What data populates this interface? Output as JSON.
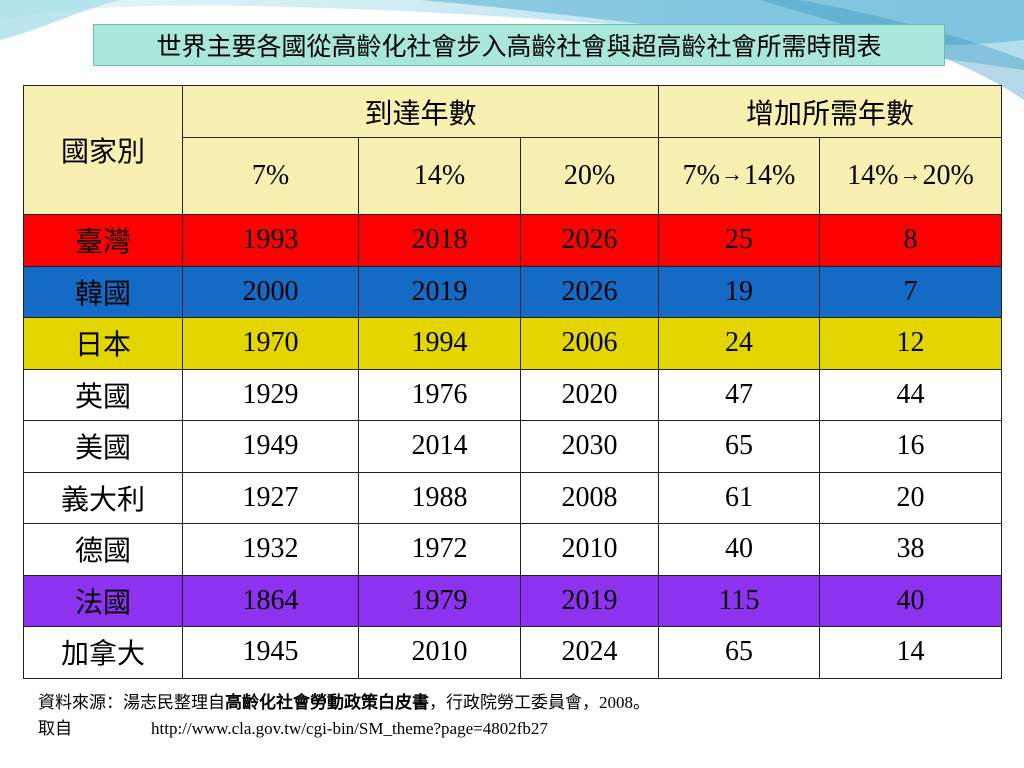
{
  "title": "世界主要各國從高齡化社會步入高齡社會與超高齡社會所需時間表",
  "header": {
    "country": "國家別",
    "years_to_reach": "到達年數",
    "years_needed": "增加所需年數",
    "cols": [
      "7%",
      "14%",
      "20%"
    ],
    "from1": "7%",
    "to1": "14%",
    "from2": "14%",
    "to2": "20%",
    "arrow": "→"
  },
  "rows": [
    {
      "country": "臺灣",
      "y7": "1993",
      "y14": "2018",
      "y20": "2026",
      "d1": "25",
      "d2": "8"
    },
    {
      "country": "韓國",
      "y7": "2000",
      "y14": "2019",
      "y20": "2026",
      "d1": "19",
      "d2": "7"
    },
    {
      "country": "日本",
      "y7": "1970",
      "y14": "1994",
      "y20": "2006",
      "d1": "24",
      "d2": "12"
    },
    {
      "country": "英國",
      "y7": "1929",
      "y14": "1976",
      "y20": "2020",
      "d1": "47",
      "d2": "44"
    },
    {
      "country": "美國",
      "y7": "1949",
      "y14": "2014",
      "y20": "2030",
      "d1": "65",
      "d2": "16"
    },
    {
      "country": "義大利",
      "y7": "1927",
      "y14": "1988",
      "y20": "2008",
      "d1": "61",
      "d2": "20"
    },
    {
      "country": "德國",
      "y7": "1932",
      "y14": "1972",
      "y20": "2010",
      "d1": "40",
      "d2": "38"
    },
    {
      "country": "法國",
      "y7": "1864",
      "y14": "1979",
      "y20": "2019",
      "d1": "115",
      "d2": "40"
    },
    {
      "country": "加拿大",
      "y7": "1945",
      "y14": "2010",
      "y20": "2024",
      "d1": "65",
      "d2": "14"
    }
  ],
  "row_colors": [
    "#ff0000",
    "#136bc6",
    "#e3d600",
    "#ffffff",
    "#ffffff",
    "#ffffff",
    "#ffffff",
    "#8d33ef",
    "#ffffff"
  ],
  "footer": {
    "source_prefix": "資料來源：湯志民整理自",
    "source_title": "高齡化社會勞動政策白皮書",
    "source_suffix": "，行政院勞工委員會，2008。",
    "retrieved_label": "取自",
    "url": "http://www.cla.gov.tw/cgi-bin/SM_theme?page=4802fb27"
  }
}
